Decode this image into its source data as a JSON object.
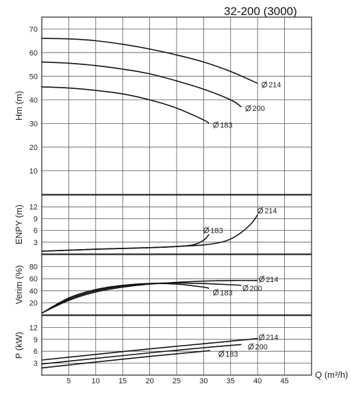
{
  "chart_data": {
    "title": "32-200 (3000)",
    "type": "line",
    "xlabel": "Q (m³/h)",
    "xlim": [
      0,
      50
    ],
    "xticks": [
      5,
      10,
      15,
      20,
      25,
      30,
      35,
      40,
      45
    ],
    "grid": true,
    "panels": [
      {
        "id": "head",
        "ylabel": "Hm (m)",
        "ylim": [
          0,
          75
        ],
        "yticks": [
          10,
          20,
          30,
          40,
          50,
          60,
          70
        ],
        "series": [
          {
            "name": "Ø214",
            "label_text": "214",
            "x": [
              0,
              5,
              10,
              15,
              20,
              25,
              30,
              35,
              40
            ],
            "y": [
              66,
              65.8,
              65,
              63.5,
              61.5,
              59,
              56,
              52,
              47
            ]
          },
          {
            "name": "Ø200",
            "label_text": "200",
            "x": [
              0,
              5,
              10,
              15,
              20,
              25,
              30,
              35,
              37
            ],
            "y": [
              56,
              55.5,
              54.5,
              53,
              51,
              48,
              44.5,
              40,
              37
            ]
          },
          {
            "name": "Ø183",
            "label_text": "183",
            "x": [
              0,
              5,
              10,
              15,
              20,
              25,
              30,
              31
            ],
            "y": [
              45.5,
              45,
              44,
              42.5,
              40,
              36.5,
              31.5,
              30
            ]
          }
        ]
      },
      {
        "id": "npsh",
        "ylabel": "ENPY (m)",
        "ylim": [
          0,
          15
        ],
        "yticks": [
          3,
          6,
          9,
          12
        ],
        "series": [
          {
            "name": "Ø214",
            "label_text": "214",
            "x": [
              0,
              10,
              20,
              25,
              30,
              33,
              35,
              37,
              39,
              40
            ],
            "y": [
              0.7,
              1.2,
              1.6,
              1.9,
              2.3,
              2.9,
              3.8,
              5.5,
              8,
              10
            ]
          },
          {
            "name": "Ø183",
            "label_text": "183",
            "x": [
              0,
              10,
              20,
              25,
              28,
              30,
              31
            ],
            "y": [
              0.7,
              1.2,
              1.6,
              1.9,
              2.3,
              3.5,
              5
            ]
          }
        ]
      },
      {
        "id": "efficiency",
        "ylabel": "Verim (%)",
        "ylim": [
          0,
          100
        ],
        "yticks": [
          20,
          40,
          60,
          80
        ],
        "series": [
          {
            "name": "Ø214",
            "label_text": "214",
            "x": [
              0,
              5,
              10,
              15,
              20,
              25,
              30,
              35,
              40
            ],
            "y": [
              3,
              24,
              38,
              46,
              51,
              54,
              56,
              57,
              57
            ]
          },
          {
            "name": "Ø200",
            "label_text": "200",
            "x": [
              0,
              5,
              10,
              15,
              20,
              25,
              30,
              35,
              37
            ],
            "y": [
              3,
              26,
              40,
              48,
              52,
              53,
              52,
              50,
              49
            ]
          },
          {
            "name": "Ø183",
            "label_text": "183",
            "x": [
              0,
              5,
              10,
              15,
              20,
              25,
              30,
              31
            ],
            "y": [
              3,
              28,
              42,
              49,
              52,
              51,
              46,
              44
            ]
          }
        ]
      },
      {
        "id": "power",
        "ylabel": "P (kW)",
        "ylim": [
          0,
          15
        ],
        "yticks": [
          3,
          6,
          9,
          12
        ],
        "series": [
          {
            "name": "Ø214",
            "label_text": "214",
            "x": [
              0,
              10,
              20,
              30,
              40
            ],
            "y": [
              3.8,
              5.2,
              6.6,
              7.9,
              9.2
            ]
          },
          {
            "name": "Ø200",
            "label_text": "200",
            "x": [
              0,
              10,
              20,
              30,
              37
            ],
            "y": [
              2.8,
              4.2,
              5.6,
              6.9,
              7.7
            ]
          },
          {
            "name": "Ø183",
            "label_text": "183",
            "x": [
              0,
              10,
              20,
              30,
              31
            ],
            "y": [
              1.8,
              3.3,
              4.7,
              6.0,
              6.2
            ]
          }
        ]
      }
    ]
  }
}
